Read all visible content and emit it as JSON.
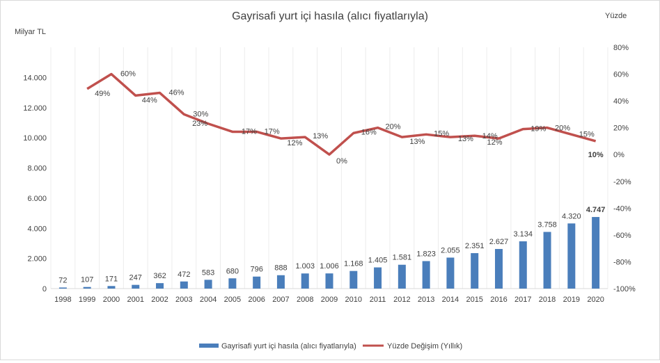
{
  "chart_data": {
    "type": "bar+line",
    "title": "Gayrisafi yurt içi hasıla (alıcı fiyatlarıyla)",
    "ylabel_left": "Milyar TL",
    "ylabel_right": "Yüzde",
    "categories": [
      "1998",
      "1999",
      "2000",
      "2001",
      "2002",
      "2003",
      "2004",
      "2005",
      "2006",
      "2007",
      "2008",
      "2009",
      "2010",
      "2011",
      "2012",
      "2013",
      "2014",
      "2015",
      "2016",
      "2017",
      "2018",
      "2019",
      "2020"
    ],
    "series": [
      {
        "name": "Gayrisafi yurt içi hasıla (alıcı fiyatlarıyla)",
        "type": "bar",
        "axis": "left",
        "color": "#4a7ebb",
        "values": [
          72,
          107,
          171,
          247,
          362,
          472,
          583,
          680,
          796,
          888,
          1003,
          1006,
          1168,
          1405,
          1581,
          1823,
          2055,
          2351,
          2627,
          3134,
          3758,
          4320,
          4747
        ],
        "labels": [
          "72",
          "107",
          "171",
          "247",
          "362",
          "472",
          "583",
          "680",
          "796",
          "888",
          "1.003",
          "1.006",
          "1.168",
          "1.405",
          "1.581",
          "1.823",
          "2.055",
          "2.351",
          "2.627",
          "3.134",
          "3.758",
          "4.320",
          "4.747"
        ]
      },
      {
        "name": "Yüzde Değişim (Yıllık)",
        "type": "line",
        "axis": "right",
        "color": "#c0504d",
        "values": [
          null,
          49,
          60,
          44,
          46,
          30,
          23,
          17,
          17,
          12,
          13,
          0,
          16,
          20,
          13,
          15,
          13,
          14,
          12,
          19,
          20,
          15,
          10
        ],
        "labels": [
          "",
          "49%",
          "60%",
          "44%",
          "46%",
          "30%",
          "23%",
          "17%",
          "17%",
          "12%",
          "13%",
          "0%",
          "16%",
          "20%",
          "13%",
          "15%",
          "13%",
          "14%",
          "12%",
          "19%",
          "20%",
          "15%",
          "10%"
        ]
      }
    ],
    "ylim_left": [
      0,
      16000
    ],
    "yticks_left": [
      "0",
      "2.000",
      "4.000",
      "6.000",
      "8.000",
      "10.000",
      "12.000",
      "14.000"
    ],
    "ylim_right": [
      -100,
      80
    ],
    "yticks_right": [
      "-100%",
      "-80%",
      "-60%",
      "-40%",
      "-20%",
      "0%",
      "20%",
      "40%",
      "60%",
      "80%"
    ],
    "legend_position": "bottom"
  }
}
